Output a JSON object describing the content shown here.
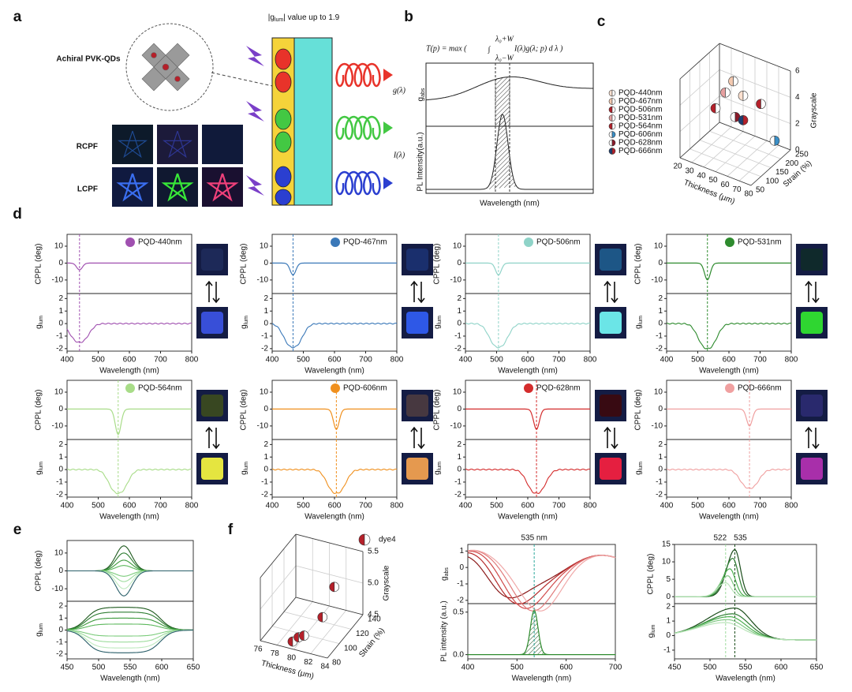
{
  "panel_labels": [
    "a",
    "b",
    "c",
    "d",
    "e",
    "f"
  ],
  "a": {
    "title": {
      "pre": "|g",
      "sub": "lum",
      "post": "| value up to 1.9"
    },
    "qd_label": "Achiral PVK-QDs",
    "rows": [
      "RCPF",
      "LCPF"
    ]
  },
  "b": {
    "formula_lhs": "T(p) = max (",
    "integral": "∫",
    "upper": "λ₀+W",
    "lower": "λ₀−W",
    "integrand": "I(λ)g(λ; p) d λ )",
    "g_label": "g(λ)",
    "i_label": "I(λ)",
    "gabs": {
      "main": "g",
      "sub": "abs"
    },
    "pl_label": "PL Intensity(a.u.)",
    "xlabel": "Wavelength (nm)"
  },
  "c": {
    "legend": [
      "PQD-440nm",
      "PQD-467nm",
      "PQD-506nm",
      "PQD-531nm",
      "PQD-564nm",
      "PQD-606nm",
      "PQD-628nm",
      "PQD-666nm"
    ],
    "colors": [
      [
        "#fbe0cf",
        "#ffffff"
      ],
      [
        "#f3c9b0",
        "#ffffff"
      ],
      [
        "#b5202a",
        "#ffffff"
      ],
      [
        "#e6a0a0",
        "#ffffff"
      ],
      [
        "#b5202a",
        "#ffffff"
      ],
      [
        "#ffffff",
        "#3a8fc7"
      ],
      [
        "#ffffff",
        "#8b1a2a"
      ],
      [
        "#1d3f73",
        "#b5202a"
      ]
    ],
    "xlabel": "Thickness (μm)",
    "ylabel": "Strain (%)",
    "zlabel": "Grayscale",
    "xlim": [
      20,
      80
    ],
    "xticks": [
      20,
      30,
      40,
      50,
      60,
      70,
      80
    ],
    "ylim": [
      50,
      250
    ],
    "yticks": [
      50,
      100,
      150,
      200,
      250
    ],
    "zlim": [
      0,
      6
    ],
    "zticks": [
      0,
      2,
      4,
      6
    ],
    "points": [
      {
        "x": 45,
        "y": 220,
        "z": 3.3
      },
      {
        "x": 40,
        "y": 200,
        "z": 4.5
      },
      {
        "x": 30,
        "y": 170,
        "z": 2.5
      },
      {
        "x": 35,
        "y": 190,
        "z": 3.6
      },
      {
        "x": 60,
        "y": 220,
        "z": 3.2
      },
      {
        "x": 75,
        "y": 200,
        "z": 1.2
      },
      {
        "x": 50,
        "y": 150,
        "z": 2.8
      },
      {
        "x": 55,
        "y": 160,
        "z": 2.6
      }
    ]
  },
  "d": {
    "xlim": [
      400,
      800
    ],
    "xticks": [
      400,
      500,
      600,
      700,
      800
    ],
    "cppl_ylim": [
      -18,
      17
    ],
    "cppl_yticks": [
      10,
      0,
      -10
    ],
    "glum_ylim": [
      -2.2,
      2.4
    ],
    "glum_yticks": [
      2,
      1,
      0,
      -1,
      -2
    ],
    "cppl_label": "CPPL (deg)",
    "glum_label": {
      "main": "g",
      "sub": "lum"
    },
    "xlabel": "Wavelength (nm)",
    "panels": [
      {
        "name": "PQD-440nm",
        "color": "#a050b0",
        "dip": 440,
        "cppl_min": -4,
        "glum_min": -1.5,
        "photos": [
          "#1d2a5a",
          "#3a52e0"
        ]
      },
      {
        "name": "PQD-467nm",
        "color": "#3a78b8",
        "dip": 467,
        "cppl_min": -7,
        "glum_min": -1.9,
        "photos": [
          "#1a3070",
          "#2f5cf0"
        ]
      },
      {
        "name": "PQD-506nm",
        "color": "#8fd3c8",
        "dip": 506,
        "cppl_min": -7,
        "glum_min": -1.9,
        "photos": [
          "#1e5a8a",
          "#70f0f0"
        ]
      },
      {
        "name": "PQD-531nm",
        "color": "#2e8b2e",
        "dip": 531,
        "cppl_min": -10,
        "glum_min": -2,
        "photos": [
          "#0f2a2a",
          "#30e030"
        ]
      },
      {
        "name": "PQD-564nm",
        "color": "#a8dc88",
        "dip": 564,
        "cppl_min": -15,
        "glum_min": -1.9,
        "photos": [
          "#3a4a20",
          "#f0f040"
        ]
      },
      {
        "name": "PQD-606nm",
        "color": "#f0901e",
        "dip": 606,
        "cppl_min": -12,
        "glum_min": -1.9,
        "photos": [
          "#4a3a40",
          "#f0a050"
        ]
      },
      {
        "name": "PQD-628nm",
        "color": "#d42c2c",
        "dip": 628,
        "cppl_min": -12,
        "glum_min": -1.9,
        "photos": [
          "#3a0a10",
          "#f02040"
        ]
      },
      {
        "name": "PQD-666nm",
        "color": "#f0a0a0",
        "dip": 666,
        "cppl_min": -10,
        "glum_min": -1.5,
        "photos": [
          "#2a2a70",
          "#b030b0"
        ]
      }
    ]
  },
  "e": {
    "xlim": [
      450,
      650
    ],
    "xticks": [
      450,
      500,
      550,
      600,
      650
    ],
    "cppl_ylim": [
      -17,
      17
    ],
    "cppl_yticks": [
      10,
      0,
      -10
    ],
    "glum_ylim": [
      -2.4,
      2.4
    ],
    "glum_yticks": [
      2,
      1,
      0,
      -1,
      -2
    ],
    "cppl_label": "CPPL (deg)",
    "glum_label": {
      "main": "g",
      "sub": "lum"
    },
    "xlabel": "Wavelength (nm)",
    "center": 540,
    "cppl_peaks": [
      14,
      10,
      6,
      3,
      -3,
      -6,
      -10,
      -14
    ],
    "glum_levels": [
      1.9,
      1.5,
      1.0,
      0.5,
      -0.5,
      -1.0,
      -1.5,
      -1.9
    ],
    "colors": [
      "#1e5a1e",
      "#2e7d32",
      "#3c9a3c",
      "#5cb85c",
      "#7ccc7c",
      "#9ddc9d",
      "#bfeabf",
      "#2b5f6a"
    ]
  },
  "f": {
    "scatter": {
      "legend": "dye4",
      "colors": [
        "#b5202a",
        "#ffffff"
      ],
      "xlabel": "Thickness (μm)",
      "ylabel": "Strain (%)",
      "zlabel": "Grayscale",
      "xlim": [
        76,
        84
      ],
      "xticks": [
        76,
        78,
        80,
        82,
        84
      ],
      "ylim": [
        80,
        140
      ],
      "yticks": [
        80,
        100,
        120,
        140
      ],
      "zlim": [
        4.5,
        5.5
      ],
      "zticks": [
        4.5,
        {
          "value": 5,
          "label": "5.0"
        },
        5.5
      ],
      "points": [
        {
          "x": 79.5,
          "y": 85,
          "z": 4.55
        },
        {
          "x": 80,
          "y": 88,
          "z": 4.6
        },
        {
          "x": 80.5,
          "y": 90,
          "z": 4.62
        },
        {
          "x": 82,
          "y": 100,
          "z": 4.85
        },
        {
          "x": 82,
          "y": 120,
          "z": 5.1
        }
      ]
    },
    "abs": {
      "annotation": "535 nm",
      "marker": 535,
      "xlim": [
        400,
        700
      ],
      "xticks": [
        400,
        500,
        600,
        700
      ],
      "top_ylim": [
        -2.2,
        1.4
      ],
      "top_yticks": [
        1,
        0,
        -1,
        -2
      ],
      "bottom_ylim": [
        -0.05,
        0.6
      ],
      "bottom_yticks": [
        {
          "value": 0,
          "label": "0.0"
        },
        0.5
      ],
      "gabs": {
        "main": "g",
        "sub": "abs"
      },
      "pl_label": "PL intensity (a.u.)",
      "xlabel": "Wavelength (nm)",
      "dips": [
        470,
        490,
        510,
        530,
        550
      ],
      "colors": [
        "#8b1a1a",
        "#b52a2a",
        "#d04a4a",
        "#e07a7a",
        "#f0a8a8"
      ],
      "pl_peak": 535,
      "pl_height": 0.52,
      "pl_color": "#2e8b2e"
    },
    "spec": {
      "annotations": [
        "522",
        "535"
      ],
      "markers": [
        522,
        535
      ],
      "xlim": [
        450,
        650
      ],
      "xticks": [
        450,
        500,
        550,
        600,
        650
      ],
      "cppl_ylim": [
        -2,
        15
      ],
      "cppl_yticks": [
        0,
        5,
        10,
        15
      ],
      "glum_ylim": [
        -1.6,
        2.2
      ],
      "glum_yticks": [
        2,
        1,
        0,
        -1
      ],
      "cppl_label": "CPPL (deg)",
      "glum_label": {
        "main": "g",
        "sub": "lum"
      },
      "xlabel": "Wavelength (nm)",
      "peaks": [
        535,
        532,
        528,
        525,
        522
      ],
      "cppl_heights": [
        13.5,
        11,
        8,
        6,
        4
      ],
      "glum_heights": [
        1.9,
        1.5,
        1.3,
        1.1,
        0.9
      ],
      "colors": [
        "#1b4d1b",
        "#2e7d32",
        "#4caf50",
        "#81c784",
        "#b9e4b9"
      ]
    }
  }
}
